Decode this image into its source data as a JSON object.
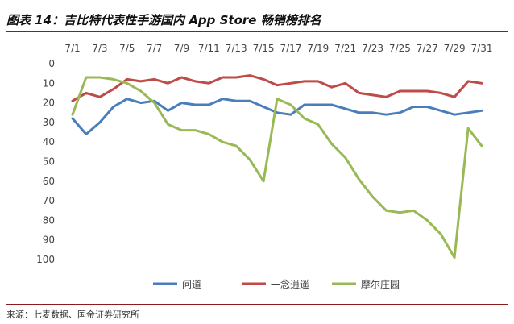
{
  "title": "图表 14：吉比特代表性手游国内 App Store 畅销榜排名",
  "source": "来源：七麦数据、国金证券研究所",
  "chart_data": {
    "type": "line",
    "x": [
      "7/1",
      "7/2",
      "7/3",
      "7/4",
      "7/5",
      "7/6",
      "7/7",
      "7/8",
      "7/9",
      "7/10",
      "7/11",
      "7/12",
      "7/13",
      "7/14",
      "7/15",
      "7/16",
      "7/17",
      "7/18",
      "7/19",
      "7/20",
      "7/21",
      "7/22",
      "7/23",
      "7/24",
      "7/25",
      "7/26",
      "7/27",
      "7/28",
      "7/29",
      "7/30",
      "7/31"
    ],
    "x_tick_labels": [
      "7/1",
      "7/3",
      "7/5",
      "7/7",
      "7/9",
      "7/11",
      "7/13",
      "7/15",
      "7/17",
      "7/19",
      "7/21",
      "7/23",
      "7/25",
      "7/27",
      "7/29",
      "7/31"
    ],
    "y_ticks": [
      0,
      10,
      20,
      30,
      40,
      50,
      60,
      70,
      80,
      90,
      100
    ],
    "ylim": [
      0,
      100
    ],
    "y_inverted": true,
    "grid": false,
    "legend_position": "bottom",
    "series": [
      {
        "name": "问道",
        "color": "#4a7ebb",
        "values": [
          28,
          36,
          30,
          22,
          18,
          20,
          19,
          24,
          20,
          21,
          21,
          18,
          19,
          19,
          22,
          25,
          26,
          21,
          21,
          21,
          23,
          25,
          25,
          26,
          25,
          22,
          22,
          24,
          26,
          25,
          24
        ]
      },
      {
        "name": "一念逍遥",
        "color": "#be4b48",
        "values": [
          19,
          15,
          17,
          13,
          8,
          9,
          8,
          10,
          7,
          9,
          10,
          7,
          7,
          6,
          8,
          11,
          10,
          9,
          9,
          12,
          10,
          15,
          16,
          17,
          14,
          14,
          14,
          15,
          17,
          9,
          10
        ]
      },
      {
        "name": "摩尔庄园",
        "color": "#98b954",
        "values": [
          26,
          7,
          7,
          8,
          10,
          14,
          20,
          31,
          34,
          34,
          36,
          40,
          42,
          49,
          60,
          18,
          21,
          28,
          31,
          41,
          48,
          59,
          68,
          75,
          76,
          75,
          80,
          87,
          99,
          33,
          42
        ]
      }
    ]
  }
}
